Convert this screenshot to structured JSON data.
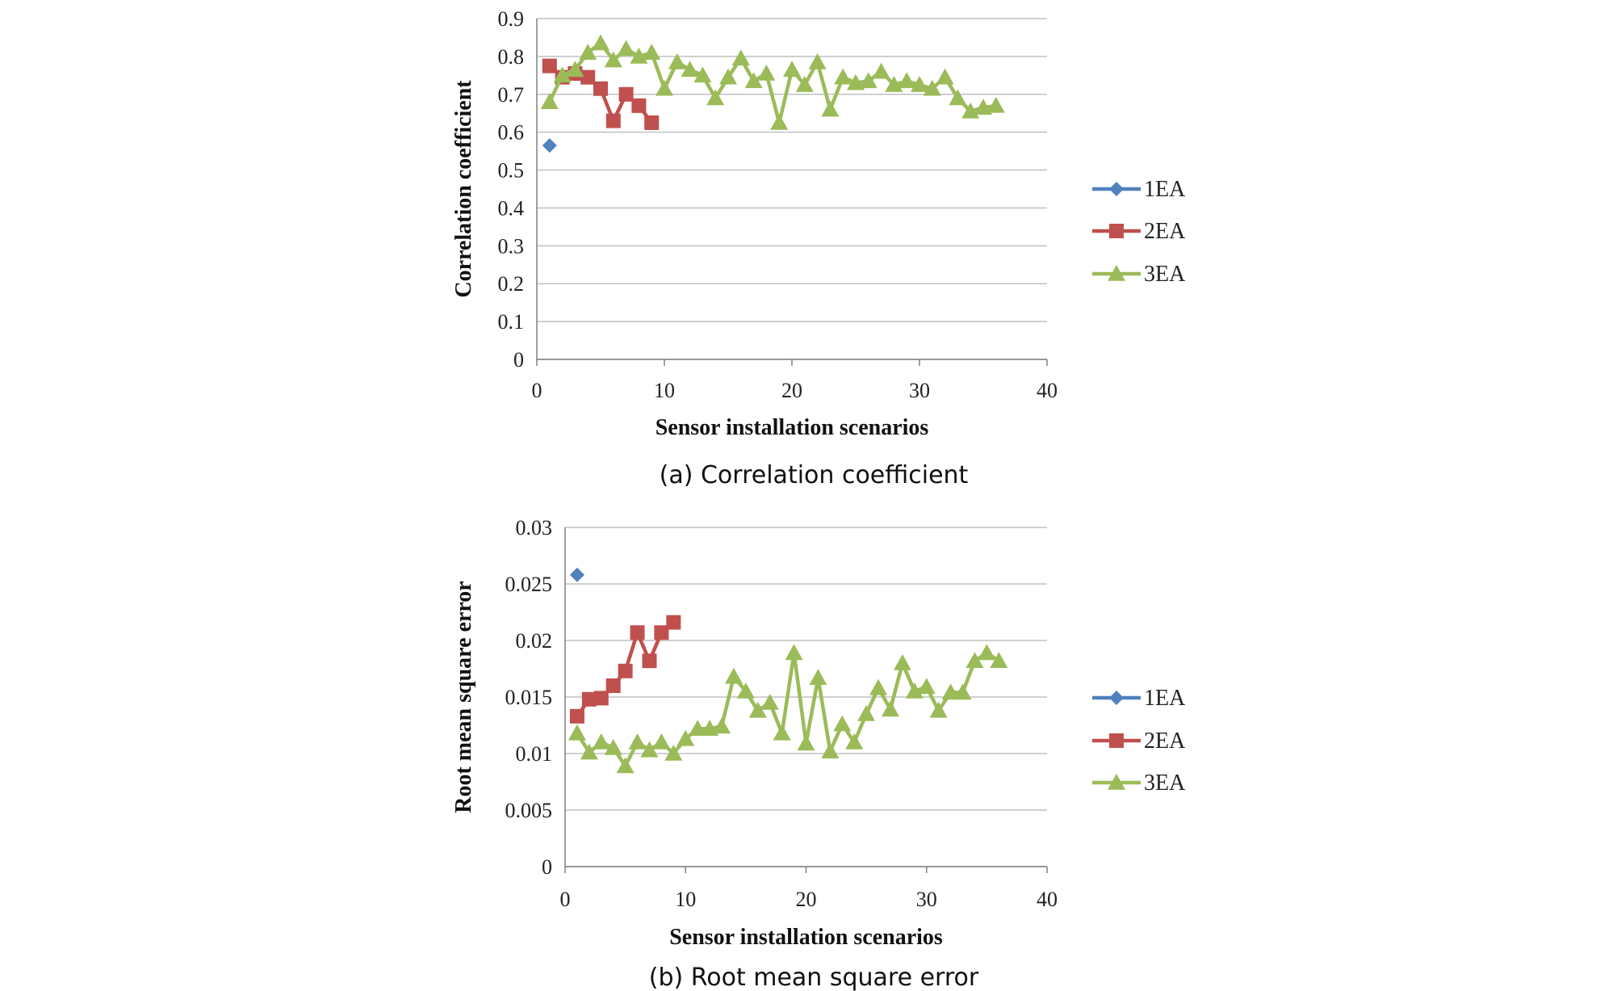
{
  "colors": {
    "1EA": "#4f81bd",
    "2EA": "#c0504d",
    "3EA": "#9bbb59",
    "grid": "#c0c0c0",
    "axis": "#808080"
  },
  "chart_data": [
    {
      "type": "line",
      "caption": "(a) Correlation coefficient",
      "xlabel": "Sensor installation  scenarios",
      "ylabel": "Correlation  coefficient",
      "xlim": [
        0,
        40
      ],
      "ylim": [
        0,
        0.9
      ],
      "x_ticks": [
        0,
        10,
        20,
        30,
        40
      ],
      "y_ticks": [
        0,
        0.1,
        0.2,
        0.3,
        0.4,
        0.5,
        0.6,
        0.7,
        0.8,
        0.9
      ],
      "grid": "horizontal",
      "legend_position": "right",
      "series": [
        {
          "name": "1EA",
          "marker": "diamond",
          "x": [
            1
          ],
          "y": [
            0.565
          ]
        },
        {
          "name": "2EA",
          "marker": "square",
          "x": [
            1,
            2,
            3,
            4,
            5,
            6,
            7,
            8,
            9
          ],
          "y": [
            0.775,
            0.745,
            0.755,
            0.745,
            0.715,
            0.63,
            0.7,
            0.67,
            0.625
          ]
        },
        {
          "name": "3EA",
          "marker": "triangle",
          "x": [
            1,
            2,
            3,
            4,
            5,
            6,
            7,
            8,
            9,
            10,
            11,
            12,
            13,
            14,
            15,
            16,
            17,
            18,
            19,
            20,
            21,
            22,
            23,
            24,
            25,
            26,
            27,
            28,
            29,
            30,
            31,
            32,
            33,
            34,
            35,
            36
          ],
          "y": [
            0.68,
            0.75,
            0.765,
            0.81,
            0.835,
            0.79,
            0.82,
            0.8,
            0.81,
            0.715,
            0.785,
            0.765,
            0.75,
            0.69,
            0.745,
            0.795,
            0.735,
            0.755,
            0.625,
            0.765,
            0.725,
            0.785,
            0.66,
            0.745,
            0.73,
            0.735,
            0.76,
            0.725,
            0.735,
            0.725,
            0.715,
            0.745,
            0.69,
            0.655,
            0.665,
            0.67
          ]
        }
      ]
    },
    {
      "type": "line",
      "caption": "(b) Root mean square error",
      "xlabel": "Sensor installation  scenarios",
      "ylabel": "Root mean square error",
      "xlim": [
        0,
        40
      ],
      "ylim": [
        0,
        0.03
      ],
      "x_ticks": [
        0,
        10,
        20,
        30,
        40
      ],
      "y_ticks": [
        0,
        0.005,
        0.01,
        0.015,
        0.02,
        0.025,
        0.03
      ],
      "grid": "horizontal",
      "legend_position": "right",
      "series": [
        {
          "name": "1EA",
          "marker": "diamond",
          "x": [
            1
          ],
          "y": [
            0.0258
          ]
        },
        {
          "name": "2EA",
          "marker": "square",
          "x": [
            1,
            2,
            3,
            4,
            5,
            6,
            7,
            8,
            9
          ],
          "y": [
            0.0133,
            0.0148,
            0.0149,
            0.016,
            0.0173,
            0.0207,
            0.0182,
            0.0207,
            0.0216
          ]
        },
        {
          "name": "3EA",
          "marker": "triangle",
          "x": [
            1,
            2,
            3,
            4,
            5,
            6,
            7,
            8,
            9,
            10,
            11,
            12,
            13,
            14,
            15,
            16,
            17,
            18,
            19,
            20,
            21,
            22,
            23,
            24,
            25,
            26,
            27,
            28,
            29,
            30,
            31,
            32,
            33,
            34,
            35,
            36
          ],
          "y": [
            0.0118,
            0.0101,
            0.011,
            0.0105,
            0.0089,
            0.011,
            0.0103,
            0.011,
            0.01,
            0.0113,
            0.0122,
            0.0122,
            0.0124,
            0.0168,
            0.0155,
            0.0138,
            0.0145,
            0.0118,
            0.0189,
            0.0109,
            0.0167,
            0.0102,
            0.0126,
            0.011,
            0.0135,
            0.0158,
            0.0139,
            0.018,
            0.0155,
            0.0159,
            0.0138,
            0.0154,
            0.0154,
            0.0182,
            0.0189,
            0.0182
          ]
        }
      ]
    }
  ]
}
